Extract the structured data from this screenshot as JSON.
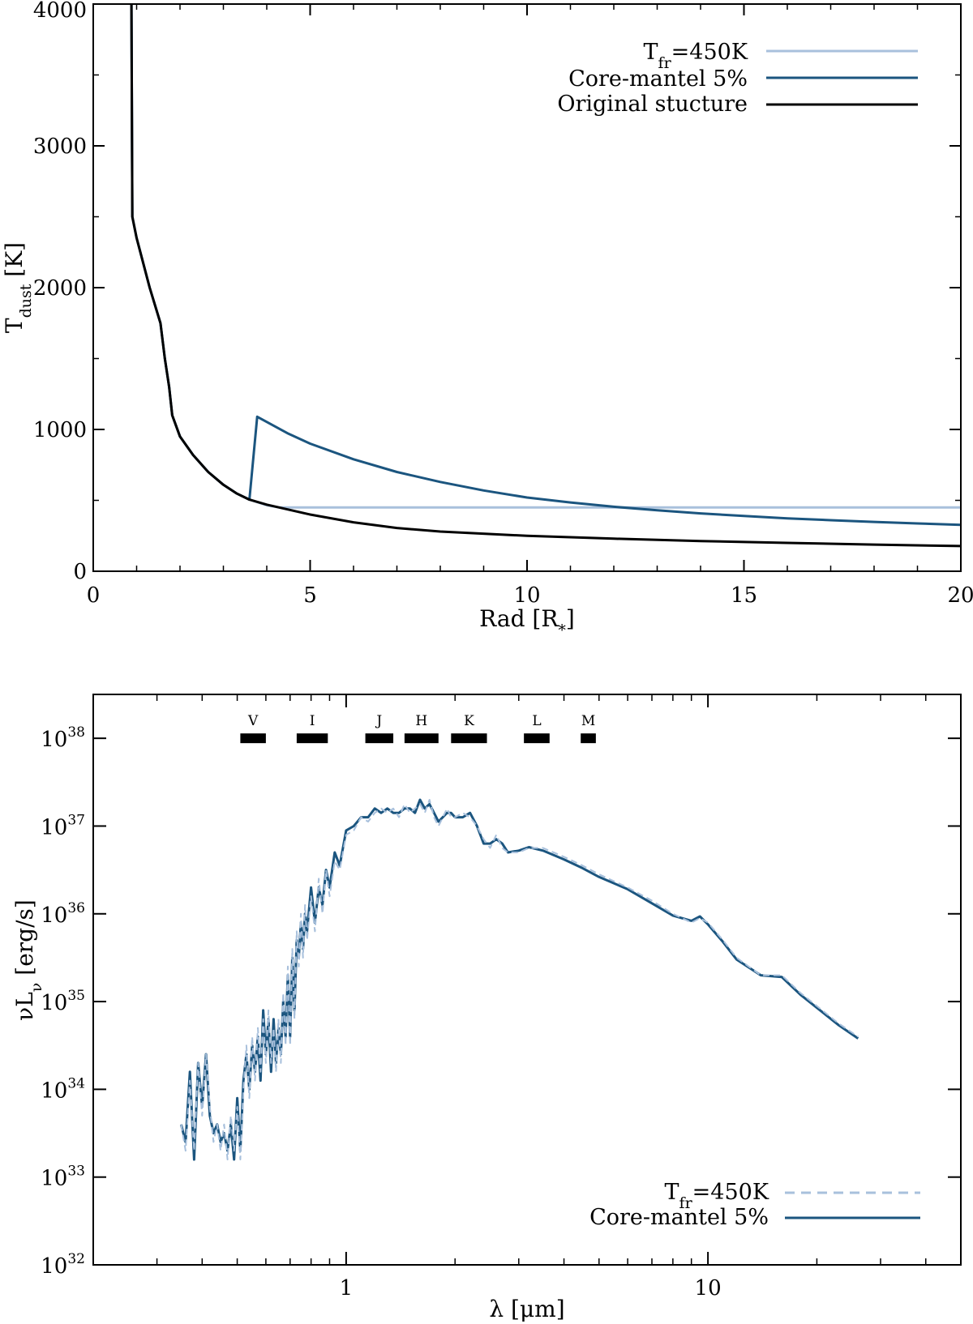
{
  "colors": {
    "tfr": "#a8c0dc",
    "core_mantel": "#1b557f",
    "original": "#000000"
  },
  "chart_data": [
    {
      "type": "line",
      "id": "top",
      "xlabel": "Rad [R*]",
      "xlabel_main": "Rad [R",
      "xlabel_sub": "*",
      "xlabel_end": "]",
      "ylabel": "T_dust [K]",
      "ylabel_main": "T",
      "ylabel_sub": "dust",
      "ylabel_end": " [K]",
      "xlim": [
        0,
        20
      ],
      "ylim": [
        0,
        4000
      ],
      "xticks": [
        "0",
        "5",
        "10",
        "15",
        "20"
      ],
      "yticks": [
        "0",
        "1000",
        "2000",
        "3000",
        "4000"
      ],
      "legend_position": "top-right",
      "series": [
        {
          "name": "T_fr=450K",
          "label_main": "T",
          "label_sub": "fr",
          "label_end": "=450K",
          "color": "#a8c0dc",
          "x": [
            0.88,
            0.9,
            1.0,
            1.3,
            1.55,
            1.65,
            1.75,
            1.82,
            2.0,
            2.3,
            2.65,
            3.0,
            3.3,
            3.6,
            4.0,
            4.3,
            6,
            10,
            15,
            20
          ],
          "y": [
            4000,
            2500,
            2350,
            2000,
            1750,
            1500,
            1300,
            1100,
            950,
            820,
            700,
            610,
            550,
            505,
            465,
            450,
            450,
            450,
            450,
            450
          ]
        },
        {
          "name": "Core-mantel 5%",
          "label_main": "Core-mantel 5%",
          "color": "#1b557f",
          "x": [
            0.88,
            0.9,
            1.0,
            1.3,
            1.55,
            1.65,
            1.75,
            1.82,
            2.0,
            2.3,
            2.65,
            3.0,
            3.3,
            3.6,
            3.78,
            4.5,
            5,
            6,
            7,
            8,
            9,
            10,
            11,
            12,
            13,
            14,
            15,
            16,
            17,
            18,
            19,
            20
          ],
          "y": [
            4000,
            2500,
            2350,
            2000,
            1750,
            1500,
            1300,
            1100,
            950,
            820,
            700,
            610,
            550,
            505,
            1090,
            970,
            900,
            790,
            700,
            630,
            570,
            520,
            485,
            455,
            430,
            408,
            390,
            373,
            360,
            348,
            337,
            327
          ]
        },
        {
          "name": "Original stucture",
          "label_main": "Original stucture",
          "color": "#000000",
          "x": [
            0.88,
            0.9,
            1.0,
            1.3,
            1.55,
            1.65,
            1.75,
            1.82,
            2.0,
            2.3,
            2.65,
            3.0,
            3.3,
            3.6,
            4.0,
            5,
            6,
            7,
            8,
            10,
            12,
            14,
            16,
            18,
            20
          ],
          "y": [
            4000,
            2500,
            2350,
            2000,
            1750,
            1500,
            1300,
            1100,
            950,
            820,
            700,
            610,
            550,
            505,
            470,
            400,
            345,
            305,
            280,
            250,
            230,
            213,
            200,
            188,
            178
          ]
        }
      ]
    },
    {
      "type": "line",
      "id": "bottom",
      "xscale": "log",
      "yscale": "log",
      "xlabel": "λ [μm]",
      "ylabel": "νL_ν [erg/s]",
      "ylabel_main": "νL",
      "ylabel_sub": "ν",
      "ylabel_end": " [erg/s]",
      "xlim": [
        0.2,
        50
      ],
      "ylim_exp": [
        32,
        38.5
      ],
      "xticks": [
        "1",
        "10"
      ],
      "ytick_base": "10",
      "ytick_exponents": [
        "32",
        "33",
        "34",
        "35",
        "36",
        "37",
        "38"
      ],
      "legend_position": "bottom-right",
      "photometric_bands": {
        "y_exp": 38,
        "bands": [
          {
            "name": "V",
            "lambda": [
              0.51,
              0.6
            ]
          },
          {
            "name": "I",
            "lambda": [
              0.73,
              0.89
            ]
          },
          {
            "name": "J",
            "lambda": [
              1.13,
              1.35
            ]
          },
          {
            "name": "H",
            "lambda": [
              1.45,
              1.8
            ]
          },
          {
            "name": "K",
            "lambda": [
              1.95,
              2.45
            ]
          },
          {
            "name": "L",
            "lambda": [
              3.1,
              3.65
            ]
          },
          {
            "name": "M",
            "lambda": [
              4.45,
              4.9
            ]
          }
        ]
      },
      "series": [
        {
          "name": "T_fr=450K",
          "label_main": "T",
          "label_sub": "fr",
          "label_end": "=450K",
          "style": "dashed",
          "color": "#a8c0dc",
          "x": [
            0.35,
            0.36,
            0.37,
            0.38,
            0.39,
            0.4,
            0.41,
            0.42,
            0.43,
            0.44,
            0.45,
            0.46,
            0.47,
            0.48,
            0.49,
            0.5,
            0.51,
            0.52,
            0.53,
            0.54,
            0.55,
            0.56,
            0.57,
            0.58,
            0.59,
            0.6,
            0.61,
            0.62,
            0.63,
            0.64,
            0.65,
            0.66,
            0.67,
            0.68,
            0.69,
            0.7,
            0.71,
            0.72,
            0.73,
            0.74,
            0.75,
            0.76,
            0.77,
            0.78,
            0.8,
            0.82,
            0.84,
            0.86,
            0.88,
            0.9,
            0.93,
            0.96,
            1.0,
            1.05,
            1.1,
            1.15,
            1.2,
            1.25,
            1.3,
            1.35,
            1.4,
            1.45,
            1.5,
            1.55,
            1.6,
            1.65,
            1.7,
            1.75,
            1.8,
            1.85,
            1.9,
            1.95,
            2.0,
            2.1,
            2.2,
            2.3,
            2.4,
            2.5,
            2.6,
            2.7,
            2.8,
            3.0,
            3.2,
            3.5,
            4.0,
            4.5,
            5.0,
            6.0,
            7.0,
            8.0,
            9.0,
            9.5,
            10.0,
            11.0,
            12.0,
            14.0,
            16.0,
            18.0,
            20.0,
            23.0,
            26.0
          ],
          "y_exp": [
            33.6,
            33.3,
            34.1,
            33.3,
            34.3,
            33.7,
            34.4,
            33.8,
            33.4,
            33.6,
            33.3,
            33.6,
            33.2,
            33.7,
            33.3,
            33.8,
            33.2,
            34.0,
            34.5,
            33.9,
            34.6,
            34.1,
            34.7,
            34.2,
            34.8,
            34.3,
            34.9,
            34.3,
            34.7,
            34.2,
            34.8,
            34.3,
            35.1,
            34.5,
            35.4,
            34.5,
            35.6,
            34.8,
            35.8,
            35.4,
            36.0,
            35.5,
            36.1,
            35.7,
            36.2,
            35.8,
            36.4,
            36.0,
            36.5,
            36.2,
            36.6,
            36.5,
            36.9,
            36.95,
            37.1,
            37.05,
            37.15,
            37.2,
            37.15,
            37.2,
            37.1,
            37.25,
            37.15,
            37.2,
            37.25,
            37.15,
            37.3,
            37.1,
            37.0,
            37.1,
            37.2,
            37.1,
            37.1,
            37.15,
            37.1,
            37.0,
            36.85,
            36.75,
            36.9,
            36.75,
            36.7,
            36.7,
            36.75,
            36.75,
            36.65,
            36.55,
            36.45,
            36.3,
            36.15,
            36.0,
            35.9,
            35.95,
            35.9,
            35.7,
            35.5,
            35.3,
            35.3,
            35.1,
            34.95,
            34.75,
            34.6
          ]
        },
        {
          "name": "Core-mantel 5%",
          "label_main": "Core-mantel 5%",
          "style": "solid",
          "color": "#1b557f",
          "x": [
            0.35,
            0.36,
            0.37,
            0.38,
            0.39,
            0.4,
            0.41,
            0.42,
            0.43,
            0.44,
            0.45,
            0.46,
            0.47,
            0.48,
            0.49,
            0.5,
            0.51,
            0.52,
            0.53,
            0.54,
            0.55,
            0.56,
            0.57,
            0.58,
            0.59,
            0.6,
            0.61,
            0.62,
            0.63,
            0.64,
            0.65,
            0.66,
            0.67,
            0.68,
            0.69,
            0.7,
            0.71,
            0.72,
            0.73,
            0.74,
            0.75,
            0.76,
            0.77,
            0.78,
            0.8,
            0.82,
            0.84,
            0.86,
            0.88,
            0.9,
            0.93,
            0.96,
            1.0,
            1.05,
            1.1,
            1.15,
            1.2,
            1.25,
            1.3,
            1.35,
            1.4,
            1.45,
            1.5,
            1.55,
            1.6,
            1.65,
            1.7,
            1.75,
            1.8,
            1.85,
            1.9,
            1.95,
            2.0,
            2.1,
            2.2,
            2.3,
            2.4,
            2.5,
            2.6,
            2.7,
            2.8,
            3.0,
            3.2,
            3.5,
            4.0,
            4.5,
            5.0,
            6.0,
            7.0,
            8.0,
            9.0,
            9.5,
            10.0,
            11.0,
            12.0,
            14.0,
            16.0,
            18.0,
            20.0,
            23.0,
            26.0
          ],
          "y_exp": [
            33.6,
            33.4,
            34.2,
            33.2,
            34.3,
            33.8,
            34.4,
            33.7,
            33.5,
            33.6,
            33.4,
            33.5,
            33.3,
            33.6,
            33.2,
            33.9,
            33.3,
            34.1,
            34.4,
            34.0,
            34.5,
            34.2,
            34.6,
            34.1,
            34.9,
            34.4,
            34.8,
            34.2,
            34.8,
            34.3,
            34.7,
            34.4,
            35.0,
            34.6,
            35.3,
            34.6,
            35.5,
            34.9,
            35.7,
            35.5,
            35.9,
            35.6,
            36.0,
            35.8,
            36.3,
            35.9,
            36.3,
            36.1,
            36.5,
            36.3,
            36.7,
            36.55,
            36.95,
            37.0,
            37.1,
            37.1,
            37.2,
            37.15,
            37.2,
            37.15,
            37.15,
            37.2,
            37.2,
            37.15,
            37.3,
            37.2,
            37.25,
            37.15,
            37.05,
            37.1,
            37.15,
            37.15,
            37.1,
            37.1,
            37.15,
            37.0,
            36.8,
            36.8,
            36.85,
            36.8,
            36.7,
            36.72,
            36.76,
            36.72,
            36.62,
            36.52,
            36.42,
            36.28,
            36.12,
            35.98,
            35.92,
            35.97,
            35.88,
            35.68,
            35.48,
            35.3,
            35.28,
            35.08,
            34.93,
            34.73,
            34.58
          ]
        }
      ]
    }
  ]
}
